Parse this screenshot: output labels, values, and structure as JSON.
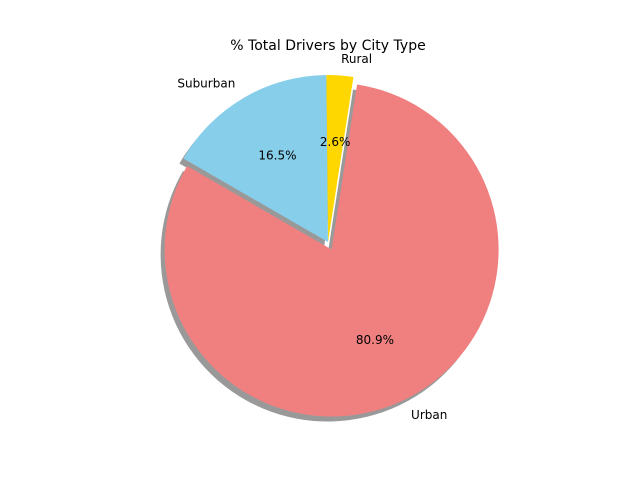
{
  "chart_data": {
    "type": "pie",
    "title": "% Total Drivers by City Type",
    "categories": [
      "Urban",
      "Rural",
      "Suburban"
    ],
    "values": [
      80.9,
      2.6,
      16.5
    ],
    "value_labels": [
      "80.9%",
      "2.6%",
      "16.5%"
    ],
    "colors": [
      "#f08080",
      "#ffd700",
      "#87ceeb"
    ],
    "explode": [
      0.05,
      0,
      0
    ],
    "start_angle_deg": 150,
    "shadow": true,
    "legend": "none"
  }
}
